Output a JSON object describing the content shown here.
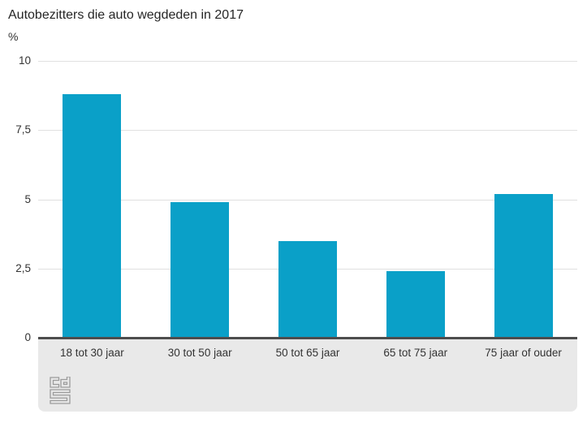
{
  "chart_data": {
    "type": "bar",
    "title": "Autobezitters die auto wegdeden in 2017",
    "ylabel": "%",
    "xlabel": "",
    "categories": [
      "18 tot 30 jaar",
      "30 tot 50 jaar",
      "50 tot 65 jaar",
      "65 tot 75 jaar",
      "75 jaar of ouder"
    ],
    "values": [
      8.8,
      4.9,
      3.5,
      2.4,
      5.2
    ],
    "ylim": [
      0,
      10
    ],
    "yticks": [
      0,
      2.5,
      5,
      7.5,
      10
    ],
    "ytick_labels": [
      "0",
      "2,5",
      "5",
      "7,5",
      "10"
    ],
    "grid": true,
    "legend": false,
    "bar_color": "#0aa0c8"
  },
  "colors": {
    "bar": "#0aa0c8",
    "gridline": "#e0e0e0",
    "axis_line": "#4d4d4d",
    "footer_bg": "#e9e9e9",
    "text": "#333333",
    "title_text": "#262626",
    "logo": "#9b9b9b"
  },
  "branding": {
    "logo": "cbs-logo"
  }
}
